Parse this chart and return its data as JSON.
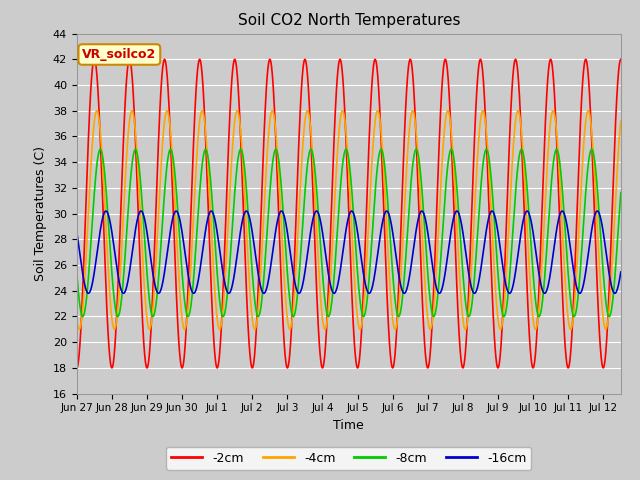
{
  "title": "Soil CO2 North Temperatures",
  "ylabel": "Soil Temperatures (C)",
  "xlabel": "Time",
  "annotation": "VR_soilco2",
  "ylim": [
    16,
    44
  ],
  "yticks": [
    16,
    18,
    20,
    22,
    24,
    26,
    28,
    30,
    32,
    34,
    36,
    38,
    40,
    42,
    44
  ],
  "colors": {
    "-2cm": "#ff0000",
    "-4cm": "#ffa500",
    "-8cm": "#00cc00",
    "-16cm": "#0000cc"
  },
  "background_color": "#cccccc",
  "plot_bg_color": "#cccccc",
  "grid_color": "#ffffff",
  "n_days": 15.5,
  "n_points": 2000,
  "signals": {
    "-2cm": {
      "amp": 12.0,
      "phase": 0.25,
      "mean": 30.0
    },
    "-4cm": {
      "amp": 8.5,
      "phase": 0.32,
      "mean": 29.5
    },
    "-8cm": {
      "amp": 6.5,
      "phase": 0.42,
      "mean": 28.5
    },
    "-16cm": {
      "amp": 3.2,
      "phase": 0.58,
      "mean": 27.0
    }
  },
  "tick_days": [
    0,
    1,
    2,
    3,
    4,
    5,
    6,
    7,
    8,
    9,
    10,
    11,
    12,
    13,
    14,
    15
  ],
  "tick_labels": [
    "Jun 27",
    "Jun 28",
    "Jun 29",
    "Jun 30",
    "Jul 1",
    "Jul 2",
    "Jul 3",
    "Jul 4",
    "Jul 5",
    "Jul 6",
    "Jul 7",
    "Jul 8",
    "Jul 9",
    "Jul 10",
    "Jul 11",
    "Jul 12"
  ]
}
